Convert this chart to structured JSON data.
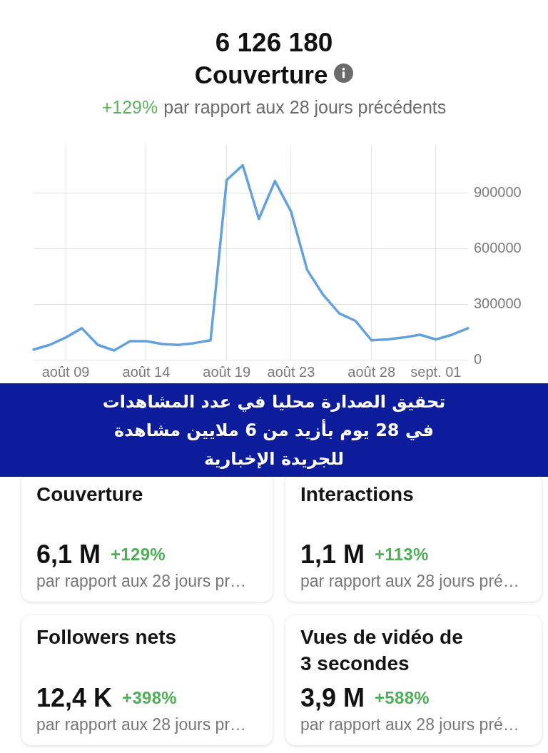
{
  "chart_data": [
    {
      "type": "line",
      "title": "6 126 180",
      "subtitle": "Couverture",
      "annotations": [
        "+129%",
        "par rapport aux 28 jours précédents"
      ],
      "categories": [
        null,
        null,
        "août 09",
        null,
        null,
        null,
        null,
        "août 14",
        null,
        null,
        null,
        null,
        "août 19",
        null,
        null,
        null,
        "août 23",
        null,
        null,
        null,
        null,
        "août 28",
        null,
        null,
        null,
        "sept. 01",
        null,
        null
      ],
      "values": [
        55000,
        80000,
        120000,
        170000,
        80000,
        50000,
        100000,
        100000,
        85000,
        80000,
        90000,
        105000,
        970000,
        1050000,
        760000,
        965000,
        800000,
        485000,
        350000,
        250000,
        210000,
        105000,
        110000,
        120000,
        135000,
        110000,
        135000,
        170000
      ],
      "color": "#63a1dd",
      "ylim": [
        0,
        1160000
      ],
      "yticks": [
        0,
        300000,
        600000,
        900000
      ],
      "grid": true,
      "legend": false,
      "marker": "none"
    },
    {
      "type": "other",
      "annotations": [
        "تحقيق الصدارة محليا في عدد المشاهدات في 28 يوم بأزيد من 6 ملايين مشاهدة للجريدة الإخبارية"
      ]
    },
    {
      "type": "other",
      "title": "Couverture",
      "annotations": [
        "6,1 M",
        "+129%",
        "par rapport aux 28 jours pr…"
      ]
    },
    {
      "type": "other",
      "title": "Interactions",
      "annotations": [
        "1,1 M",
        "+113%",
        "par rapport aux 28 jours pré…"
      ]
    },
    {
      "type": "other",
      "title": "Followers nets",
      "annotations": [
        "12,4 K",
        "+398%",
        "par rapport aux 28 jours pr…"
      ]
    },
    {
      "type": "other",
      "title": "Vues de vidéo de 3 secondes",
      "annotations": [
        "3,9 M",
        "+588%",
        "par rapport aux 28 jours pré…"
      ]
    }
  ]
}
